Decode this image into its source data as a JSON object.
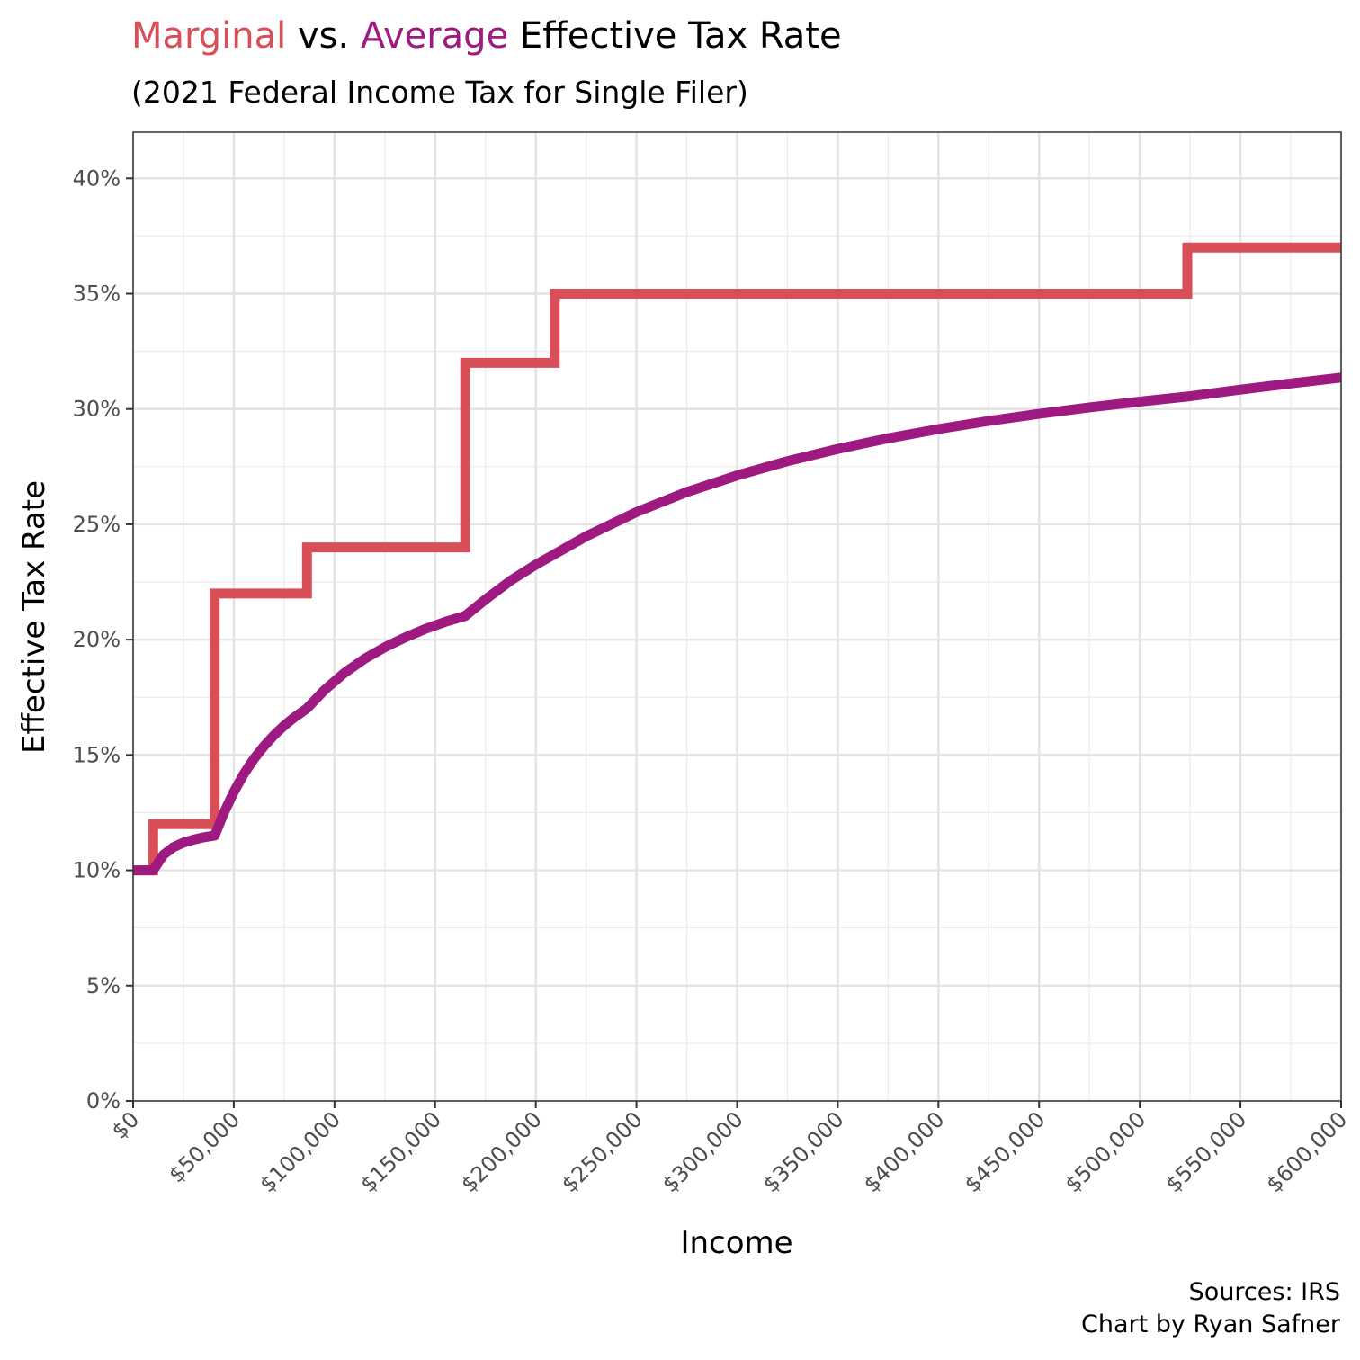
{
  "chart_data": {
    "type": "line",
    "title": {
      "marginal": "Marginal",
      "vs": "vs.",
      "average": "Average",
      "rest": "Effective Tax Rate"
    },
    "subtitle": "(2021 Federal Income Tax for Single Filer)",
    "xlabel": "Income",
    "ylabel": "Effective Tax Rate",
    "xlim": [
      0,
      600000
    ],
    "ylim": [
      0,
      0.42
    ],
    "x_ticks": [
      0,
      50000,
      100000,
      150000,
      200000,
      250000,
      300000,
      350000,
      400000,
      450000,
      500000,
      550000,
      600000
    ],
    "x_tick_labels": [
      "$0",
      "$50,000",
      "$100,000",
      "$150,000",
      "$200,000",
      "$250,000",
      "$300,000",
      "$350,000",
      "$400,000",
      "$450,000",
      "$500,000",
      "$550,000",
      "$600,000"
    ],
    "y_ticks": [
      0,
      0.05,
      0.1,
      0.15,
      0.2,
      0.25,
      0.3,
      0.35,
      0.4
    ],
    "y_tick_labels": [
      "0%",
      "5%",
      "10%",
      "15%",
      "20%",
      "25%",
      "30%",
      "35%",
      "40%"
    ],
    "grid": true,
    "legend": "none",
    "colors": {
      "marginal": "#d94f57",
      "average": "#9e1a80"
    },
    "series": [
      {
        "name": "Marginal",
        "step": true,
        "brackets": [
          {
            "from": 0,
            "rate": 0.1
          },
          {
            "from": 9950,
            "rate": 0.12
          },
          {
            "from": 40525,
            "rate": 0.22
          },
          {
            "from": 86375,
            "rate": 0.24
          },
          {
            "from": 164925,
            "rate": 0.32
          },
          {
            "from": 209425,
            "rate": 0.35
          },
          {
            "from": 523600,
            "rate": 0.37
          }
        ]
      },
      {
        "name": "Average",
        "step": false,
        "x": [
          0,
          9950,
          15000,
          20000,
          25000,
          30000,
          35000,
          40525,
          45000,
          50000,
          55000,
          60000,
          65000,
          70000,
          75000,
          80000,
          86375,
          95000,
          105000,
          115000,
          125000,
          135000,
          145000,
          155000,
          164925,
          175000,
          187500,
          200000,
          209425,
          225000,
          250000,
          275000,
          300000,
          325000,
          350000,
          375000,
          400000,
          425000,
          450000,
          475000,
          500000,
          523600,
          550000,
          575000,
          600000
        ],
        "y": [
          0.1,
          0.1,
          0.1067,
          0.11,
          0.112,
          0.1133,
          0.1143,
          0.1151,
          0.1247,
          0.1339,
          0.1418,
          0.1483,
          0.1538,
          0.1586,
          0.1627,
          0.1663,
          0.1702,
          0.1781,
          0.1856,
          0.1917,
          0.1967,
          0.2009,
          0.2046,
          0.2077,
          0.2103,
          0.2174,
          0.2256,
          0.2325,
          0.2371,
          0.2448,
          0.2553,
          0.264,
          0.2712,
          0.2774,
          0.2827,
          0.2873,
          0.2913,
          0.2948,
          0.2979,
          0.3007,
          0.3032,
          0.3054,
          0.3084,
          0.3111,
          0.3136
        ]
      }
    ]
  },
  "caption": {
    "line1": "Sources: IRS",
    "line2": "Chart by Ryan Safner"
  }
}
